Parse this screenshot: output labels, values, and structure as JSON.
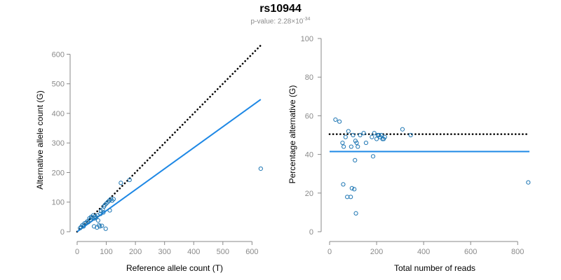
{
  "header": {
    "title": "rs10944",
    "pvalue_prefix": "p-value: 2.28×10",
    "pvalue_exp": "-34"
  },
  "chart_data": [
    {
      "type": "scatter",
      "xlabel": "Reference allele count (T)",
      "ylabel": "Alternative allele count (G)",
      "xlim": [
        0,
        640
      ],
      "ylim": [
        0,
        620
      ],
      "xticks": [
        0,
        100,
        200,
        300,
        400,
        500,
        600
      ],
      "yticks": [
        0,
        100,
        200,
        300,
        400,
        500,
        600
      ],
      "point_color": "#1f77b4",
      "points": [
        [
          10,
          12
        ],
        [
          14,
          16
        ],
        [
          18,
          22
        ],
        [
          22,
          18
        ],
        [
          25,
          28
        ],
        [
          30,
          30
        ],
        [
          35,
          35
        ],
        [
          38,
          32
        ],
        [
          42,
          45
        ],
        [
          45,
          40
        ],
        [
          48,
          50
        ],
        [
          52,
          48
        ],
        [
          55,
          55
        ],
        [
          58,
          18
        ],
        [
          60,
          45
        ],
        [
          62,
          52
        ],
        [
          65,
          48
        ],
        [
          68,
          14
        ],
        [
          70,
          55
        ],
        [
          72,
          38
        ],
        [
          75,
          22
        ],
        [
          78,
          18
        ],
        [
          80,
          60
        ],
        [
          82,
          70
        ],
        [
          85,
          20
        ],
        [
          88,
          75
        ],
        [
          90,
          65
        ],
        [
          92,
          85
        ],
        [
          95,
          90
        ],
        [
          98,
          10
        ],
        [
          100,
          95
        ],
        [
          105,
          100
        ],
        [
          110,
          105
        ],
        [
          112,
          72
        ],
        [
          115,
          110
        ],
        [
          120,
          105
        ],
        [
          125,
          110
        ],
        [
          150,
          165
        ],
        [
          180,
          175
        ],
        [
          630,
          213
        ]
      ],
      "lines": [
        {
          "style": "dotted",
          "color": "#000000",
          "from": [
            0,
            0
          ],
          "to": [
            630,
            630
          ]
        },
        {
          "style": "solid",
          "color": "#1e88e5",
          "from": [
            0,
            0
          ],
          "to": [
            630,
            447
          ]
        }
      ]
    },
    {
      "type": "scatter",
      "xlabel": "Total number of reads",
      "ylabel": "Percentage alternative (G)",
      "xlim": [
        0,
        850
      ],
      "ylim": [
        0,
        100
      ],
      "xticks": [
        0,
        200,
        400,
        600,
        800
      ],
      "yticks": [
        0,
        20,
        40,
        60,
        80,
        100
      ],
      "point_color": "#1f77b4",
      "points": [
        [
          25,
          58
        ],
        [
          42,
          57
        ],
        [
          55,
          46
        ],
        [
          58,
          24.5
        ],
        [
          60,
          44
        ],
        [
          68,
          49
        ],
        [
          75,
          18
        ],
        [
          80,
          52
        ],
        [
          90,
          18
        ],
        [
          92,
          44
        ],
        [
          95,
          22.5
        ],
        [
          100,
          50
        ],
        [
          105,
          22
        ],
        [
          108,
          37
        ],
        [
          110,
          47
        ],
        [
          112,
          9.5
        ],
        [
          115,
          46
        ],
        [
          120,
          44
        ],
        [
          130,
          50
        ],
        [
          145,
          51
        ],
        [
          155,
          46
        ],
        [
          180,
          49
        ],
        [
          185,
          39
        ],
        [
          190,
          51
        ],
        [
          200,
          48
        ],
        [
          205,
          50
        ],
        [
          210,
          50
        ],
        [
          215,
          49
        ],
        [
          220,
          50
        ],
        [
          225,
          48
        ],
        [
          230,
          48
        ],
        [
          235,
          49
        ],
        [
          310,
          53
        ],
        [
          345,
          50
        ],
        [
          845,
          25.5
        ]
      ],
      "lines": [
        {
          "style": "dotted",
          "color": "#000000",
          "y": 50.5
        },
        {
          "style": "solid",
          "color": "#1e88e5",
          "y": 41.5
        }
      ]
    }
  ]
}
